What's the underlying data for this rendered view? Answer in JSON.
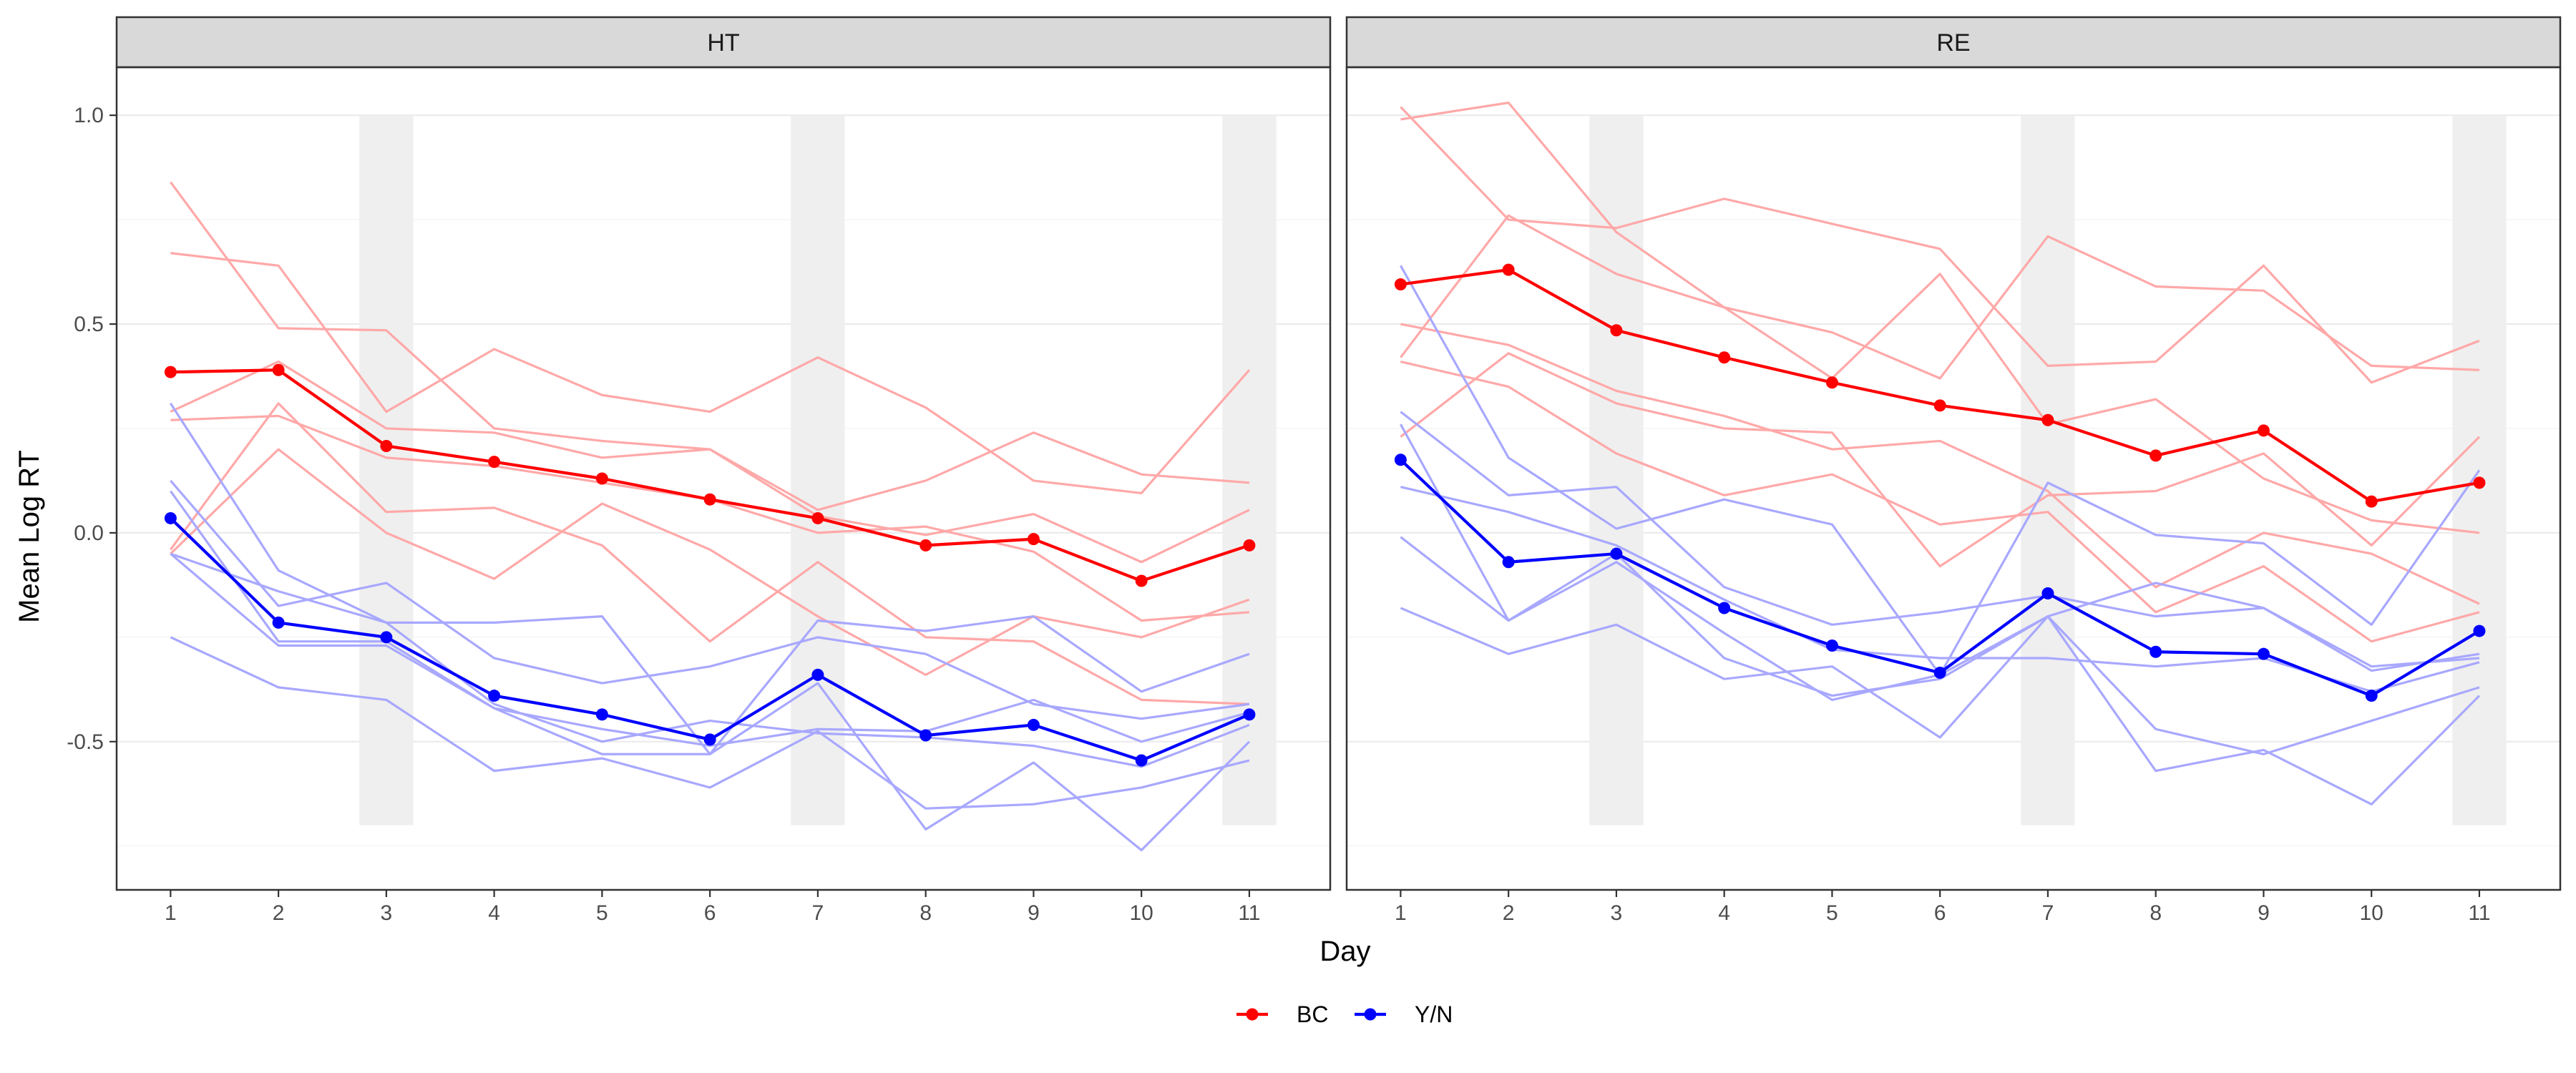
{
  "chart_data": {
    "type": "line",
    "xlabel": "Day",
    "ylabel": "Mean Log RT",
    "x": [
      1,
      2,
      3,
      4,
      5,
      6,
      7,
      8,
      9,
      10,
      11
    ],
    "x_ticks": [
      "1",
      "2",
      "3",
      "4",
      "5",
      "6",
      "7",
      "8",
      "9",
      "10",
      "11"
    ],
    "y_ticks": [
      "1.0",
      "0.5",
      "0.0",
      "-0.5"
    ],
    "y_tick_values": [
      1.0,
      0.5,
      0.0,
      -0.5
    ],
    "xlim": [
      0.5,
      11.75
    ],
    "ylim": [
      -0.855,
      1.115
    ],
    "highlighted_days": [
      3,
      7,
      11
    ],
    "highlight_ylim": [
      -0.7,
      1.0
    ],
    "grid": true,
    "legend_position": "bottom",
    "legend": [
      {
        "name": "BC",
        "color": "#ff0000"
      },
      {
        "name": "Y/N",
        "color": "#0000ff"
      }
    ],
    "colors": {
      "BC": "#ff0000",
      "Y/N": "#0000ff",
      "BC_individual": "#ffa8a8",
      "YN_individual": "#a8a8ff"
    },
    "panels": [
      {
        "label": "HT",
        "mean_series": [
          {
            "name": "BC",
            "values": [
              0.385,
              0.39,
              0.208,
              0.17,
              0.13,
              0.08,
              0.035,
              -0.03,
              -0.015,
              -0.115,
              -0.03
            ]
          },
          {
            "name": "Y/N",
            "values": [
              0.035,
              -0.215,
              -0.25,
              -0.39,
              -0.435,
              -0.495,
              -0.34,
              -0.485,
              -0.46,
              -0.545,
              -0.435
            ]
          }
        ],
        "individual_series": [
          {
            "group": "BC",
            "values": [
              0.84,
              0.49,
              0.485,
              0.25,
              0.22,
              0.2,
              0.055,
              0.125,
              0.24,
              0.14,
              0.12
            ]
          },
          {
            "group": "BC",
            "values": [
              0.67,
              0.64,
              0.29,
              0.44,
              0.33,
              0.29,
              0.42,
              0.3,
              0.125,
              0.095,
              0.39
            ]
          },
          {
            "group": "BC",
            "values": [
              0.29,
              0.41,
              0.25,
              0.24,
              0.18,
              0.2,
              0.04,
              -0.005,
              0.045,
              -0.07,
              0.055
            ]
          },
          {
            "group": "BC",
            "values": [
              0.27,
              0.28,
              0.18,
              0.16,
              0.12,
              0.08,
              0.0,
              0.015,
              -0.045,
              -0.21,
              -0.19
            ]
          },
          {
            "group": "BC",
            "values": [
              -0.05,
              0.2,
              0.0,
              -0.11,
              0.07,
              -0.04,
              -0.2,
              -0.34,
              -0.2,
              -0.25,
              -0.16
            ]
          },
          {
            "group": "BC",
            "values": [
              -0.04,
              0.31,
              0.05,
              0.06,
              -0.03,
              -0.26,
              -0.07,
              -0.25,
              -0.26,
              -0.4,
              -0.41
            ]
          },
          {
            "group": "Y/N",
            "values": [
              0.31,
              -0.09,
              -0.215,
              -0.215,
              -0.2,
              -0.53,
              -0.21,
              -0.235,
              -0.2,
              -0.38,
              -0.29
            ]
          },
          {
            "group": "Y/N",
            "values": [
              0.125,
              -0.175,
              -0.12,
              -0.3,
              -0.36,
              -0.32,
              -0.25,
              -0.29,
              -0.41,
              -0.445,
              -0.41
            ]
          },
          {
            "group": "Y/N",
            "values": [
              0.1,
              -0.26,
              -0.26,
              -0.42,
              -0.47,
              -0.51,
              -0.47,
              -0.475,
              -0.4,
              -0.5,
              -0.43
            ]
          },
          {
            "group": "Y/N",
            "values": [
              -0.05,
              -0.14,
              -0.215,
              -0.41,
              -0.5,
              -0.45,
              -0.48,
              -0.49,
              -0.51,
              -0.56,
              -0.46
            ]
          },
          {
            "group": "Y/N",
            "values": [
              -0.05,
              -0.27,
              -0.27,
              -0.42,
              -0.53,
              -0.53,
              -0.36,
              -0.71,
              -0.55,
              -0.76,
              -0.5
            ]
          },
          {
            "group": "Y/N",
            "values": [
              -0.25,
              -0.37,
              -0.4,
              -0.57,
              -0.54,
              -0.61,
              -0.475,
              -0.66,
              -0.65,
              -0.61,
              -0.545
            ]
          }
        ]
      },
      {
        "label": "RE",
        "mean_series": [
          {
            "name": "BC",
            "values": [
              0.595,
              0.63,
              0.485,
              0.42,
              0.36,
              0.305,
              0.27,
              0.185,
              0.245,
              0.075,
              0.12
            ]
          },
          {
            "name": "Y/N",
            "values": [
              0.175,
              -0.07,
              -0.05,
              -0.18,
              -0.27,
              -0.335,
              -0.145,
              -0.285,
              -0.29,
              -0.39,
              -0.235
            ]
          }
        ],
        "individual_series": [
          {
            "group": "BC",
            "values": [
              1.02,
              0.75,
              0.73,
              0.8,
              0.74,
              0.68,
              0.4,
              0.41,
              0.64,
              0.36,
              0.46
            ]
          },
          {
            "group": "BC",
            "values": [
              0.99,
              1.03,
              0.72,
              0.54,
              0.37,
              0.62,
              0.26,
              0.32,
              0.13,
              0.03,
              0.0
            ]
          },
          {
            "group": "BC",
            "values": [
              0.42,
              0.76,
              0.62,
              0.54,
              0.48,
              0.37,
              0.71,
              0.59,
              0.58,
              0.4,
              0.39
            ]
          },
          {
            "group": "BC",
            "values": [
              0.5,
              0.45,
              0.34,
              0.28,
              0.2,
              0.22,
              0.1,
              -0.13,
              0.0,
              -0.05,
              -0.17
            ]
          },
          {
            "group": "BC",
            "values": [
              0.41,
              0.35,
              0.19,
              0.09,
              0.14,
              0.02,
              0.05,
              -0.19,
              -0.08,
              -0.26,
              -0.19
            ]
          },
          {
            "group": "BC",
            "values": [
              0.23,
              0.43,
              0.31,
              0.25,
              0.24,
              -0.08,
              0.09,
              0.1,
              0.19,
              -0.03,
              0.23
            ]
          },
          {
            "group": "Y/N",
            "values": [
              0.64,
              0.18,
              0.01,
              0.08,
              0.02,
              -0.34,
              0.12,
              -0.005,
              -0.025,
              -0.22,
              0.15
            ]
          },
          {
            "group": "Y/N",
            "values": [
              0.29,
              0.09,
              0.11,
              -0.13,
              -0.22,
              -0.19,
              -0.15,
              -0.2,
              -0.18,
              -0.33,
              -0.29
            ]
          },
          {
            "group": "Y/N",
            "values": [
              0.11,
              0.05,
              -0.03,
              -0.16,
              -0.28,
              -0.3,
              -0.3,
              -0.32,
              -0.3,
              -0.38,
              -0.31
            ]
          },
          {
            "group": "Y/N",
            "values": [
              -0.01,
              -0.21,
              -0.07,
              -0.24,
              -0.4,
              -0.34,
              -0.2,
              -0.12,
              -0.18,
              -0.32,
              -0.3
            ]
          },
          {
            "group": "Y/N",
            "values": [
              -0.18,
              -0.29,
              -0.22,
              -0.35,
              -0.32,
              -0.49,
              -0.2,
              -0.57,
              -0.52,
              -0.65,
              -0.39
            ]
          },
          {
            "group": "Y/N",
            "values": [
              0.26,
              -0.21,
              -0.05,
              -0.3,
              -0.39,
              -0.35,
              -0.2,
              -0.47,
              -0.53,
              -0.45,
              -0.37
            ]
          }
        ]
      }
    ]
  }
}
